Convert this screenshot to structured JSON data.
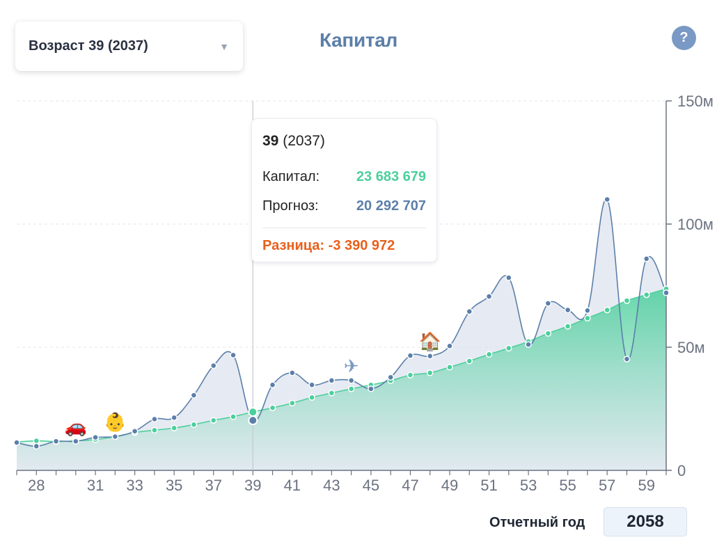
{
  "selector": {
    "label": "Возраст 39 (2037)"
  },
  "title": "Капитал",
  "help_label": "?",
  "tooltip": {
    "age": "39",
    "year": "(2037)",
    "capital_label": "Капитал:",
    "capital_value": "23 683 679",
    "forecast_label": "Прогноз:",
    "forecast_value": "20 292 707",
    "diff_label": "Разница:",
    "diff_value": "-3 390 972"
  },
  "report_year": {
    "label": "Отчетный год",
    "value": "2058"
  },
  "events": [
    {
      "age": 30,
      "icon": "car-icon",
      "glyph": "🚗"
    },
    {
      "age": 32,
      "icon": "baby-icon",
      "glyph": "👶"
    },
    {
      "age": 44,
      "icon": "airplane-icon",
      "glyph": "✈"
    },
    {
      "age": 48,
      "icon": "house-icon",
      "glyph": "🏠"
    }
  ],
  "colors": {
    "capital": "#4ccf9c",
    "forecast": "#5b7fa9",
    "diff": "#e8601c",
    "title": "#5b7fa9"
  },
  "chart_data": {
    "type": "area",
    "x_start": 27,
    "x_end": 60,
    "x_ticks": [
      28,
      31,
      33,
      35,
      37,
      39,
      41,
      43,
      45,
      47,
      49,
      51,
      53,
      55,
      57,
      59
    ],
    "y_ticks": [
      0,
      50,
      100,
      150
    ],
    "y_tick_labels": [
      "0",
      "50м",
      "100м",
      "150м"
    ],
    "ylim": [
      0,
      150
    ],
    "grid": "horizontal dashed",
    "selected_age": 39,
    "series": [
      {
        "key": "capital",
        "x": [
          27,
          28,
          29,
          30,
          31,
          32,
          33,
          34,
          35,
          36,
          37,
          38,
          39,
          40,
          41,
          42,
          43,
          44,
          45,
          46,
          47,
          48,
          49,
          50,
          51,
          52,
          53,
          54,
          55,
          56,
          57,
          58,
          59,
          60
        ],
        "values": [
          11.5,
          12.0,
          11.7,
          12.0,
          12.5,
          13.7,
          15.4,
          16.3,
          17.2,
          18.6,
          20.3,
          21.8,
          23.7,
          25.4,
          27.3,
          29.6,
          31.4,
          33.1,
          34.7,
          36.4,
          38.7,
          39.6,
          41.9,
          44.4,
          47.1,
          49.6,
          52.3,
          55.6,
          58.5,
          61.8,
          65.1,
          68.9,
          71.3,
          73.7
        ]
      },
      {
        "key": "forecast",
        "x": [
          27,
          28,
          29,
          30,
          31,
          32,
          33,
          34,
          35,
          36,
          37,
          38,
          39,
          40,
          41,
          42,
          43,
          44,
          45,
          46,
          47,
          48,
          49,
          50,
          51,
          52,
          53,
          54,
          55,
          56,
          57,
          58,
          59,
          60
        ],
        "values": [
          11.3,
          9.8,
          11.8,
          11.8,
          13.4,
          13.7,
          15.9,
          20.8,
          21.4,
          30.5,
          42.5,
          46.8,
          20.3,
          34.7,
          39.6,
          34.7,
          36.5,
          36.5,
          33.1,
          37.8,
          46.6,
          46.4,
          50.5,
          64.5,
          70.6,
          78.2,
          51.1,
          67.8,
          65.1,
          64.9,
          110.0,
          45.2,
          85.9,
          72.1
        ]
      }
    ]
  }
}
